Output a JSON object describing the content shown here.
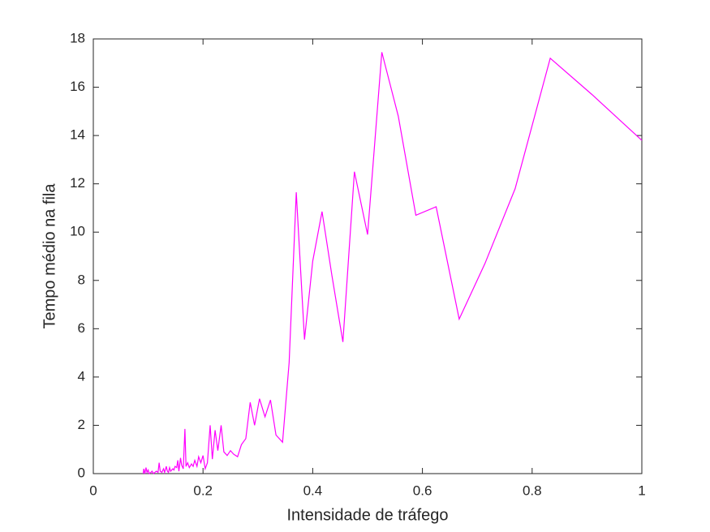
{
  "chart_data": {
    "type": "line",
    "xlabel": "Intensidade de tráfego",
    "ylabel": "Tempo médio na fila",
    "x": [
      0.091,
      0.092,
      0.094,
      0.096,
      0.098,
      0.1,
      0.102,
      0.105,
      0.107,
      0.11,
      0.112,
      0.115,
      0.118,
      0.12,
      0.122,
      0.125,
      0.128,
      0.13,
      0.133,
      0.135,
      0.137,
      0.139,
      0.141,
      0.143,
      0.145,
      0.147,
      0.149,
      0.152,
      0.154,
      0.156,
      0.159,
      0.161,
      0.164,
      0.167,
      0.169,
      0.172,
      0.175,
      0.179,
      0.182,
      0.185,
      0.189,
      0.192,
      0.196,
      0.2,
      0.204,
      0.208,
      0.213,
      0.217,
      0.222,
      0.227,
      0.233,
      0.238,
      0.244,
      0.25,
      0.256,
      0.263,
      0.27,
      0.278,
      0.286,
      0.294,
      0.303,
      0.313,
      0.323,
      0.333,
      0.345,
      0.357,
      0.37,
      0.385,
      0.4,
      0.417,
      0.435,
      0.455,
      0.476,
      0.5,
      0.526,
      0.556,
      0.588,
      0.625,
      0.667,
      0.714,
      0.769,
      0.833,
      0.909,
      1.0
    ],
    "series": [
      {
        "color": "#ff00ff",
        "values": [
          0.0,
          0.2,
          0.0,
          0.25,
          0.05,
          0.15,
          0.0,
          0.05,
          0.1,
          0.0,
          0.05,
          0.1,
          0.05,
          0.45,
          0.1,
          0.05,
          0.2,
          0.05,
          0.3,
          0.1,
          0.05,
          0.25,
          0.1,
          0.15,
          0.2,
          0.15,
          0.3,
          0.25,
          0.55,
          0.1,
          0.65,
          0.35,
          0.2,
          1.85,
          0.3,
          0.45,
          0.25,
          0.4,
          0.3,
          0.55,
          0.3,
          0.7,
          0.45,
          0.75,
          0.2,
          0.45,
          2.0,
          0.6,
          1.8,
          0.95,
          2.0,
          0.9,
          0.75,
          0.95,
          0.8,
          0.7,
          1.2,
          1.45,
          2.95,
          2.0,
          3.1,
          2.35,
          3.05,
          1.6,
          1.3,
          4.6,
          11.65,
          5.55,
          8.8,
          10.85,
          8.2,
          5.45,
          12.5,
          9.9,
          17.45,
          14.8,
          10.7,
          11.05,
          6.4,
          8.7,
          11.8,
          17.2,
          15.7,
          13.8
        ]
      }
    ],
    "xlim": [
      0,
      1
    ],
    "xticks": [
      0,
      0.2,
      0.4,
      0.6,
      0.8,
      1
    ],
    "ylim": [
      0,
      18
    ],
    "yticks": [
      0,
      2,
      4,
      6,
      8,
      10,
      12,
      14,
      16,
      18
    ]
  }
}
